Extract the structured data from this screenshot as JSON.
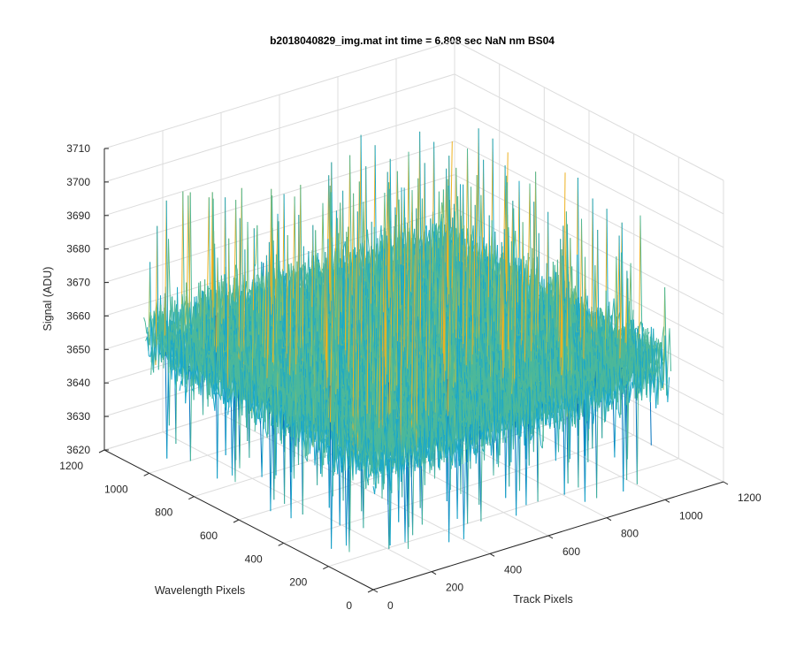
{
  "chart_data": {
    "type": "surface",
    "title": "b2018040829_img.mat int time = 6.808 sec  NaN nm BS04",
    "xlabel": "Track Pixels",
    "ylabel": "Wavelength Pixels",
    "zlabel": "Signal (ADU)",
    "xlim": [
      0,
      1200
    ],
    "ylim": [
      0,
      1200
    ],
    "zlim": [
      3620,
      3710
    ],
    "x_ticks": [
      0,
      200,
      400,
      600,
      800,
      1000,
      1200
    ],
    "y_ticks": [
      0,
      200,
      400,
      600,
      800,
      1000,
      1200
    ],
    "z_ticks": [
      3620,
      3630,
      3640,
      3650,
      3660,
      3670,
      3680,
      3690,
      3700,
      3710
    ],
    "data_extent": {
      "x": [
        0,
        1024
      ],
      "y": [
        0,
        1024
      ]
    },
    "signal_mean": 3660,
    "signal_range": [
      3625,
      3705
    ],
    "colormap": [
      "#0072bd",
      "#1ba8c9",
      "#4cb89a",
      "#9cc05a",
      "#edb120"
    ]
  }
}
